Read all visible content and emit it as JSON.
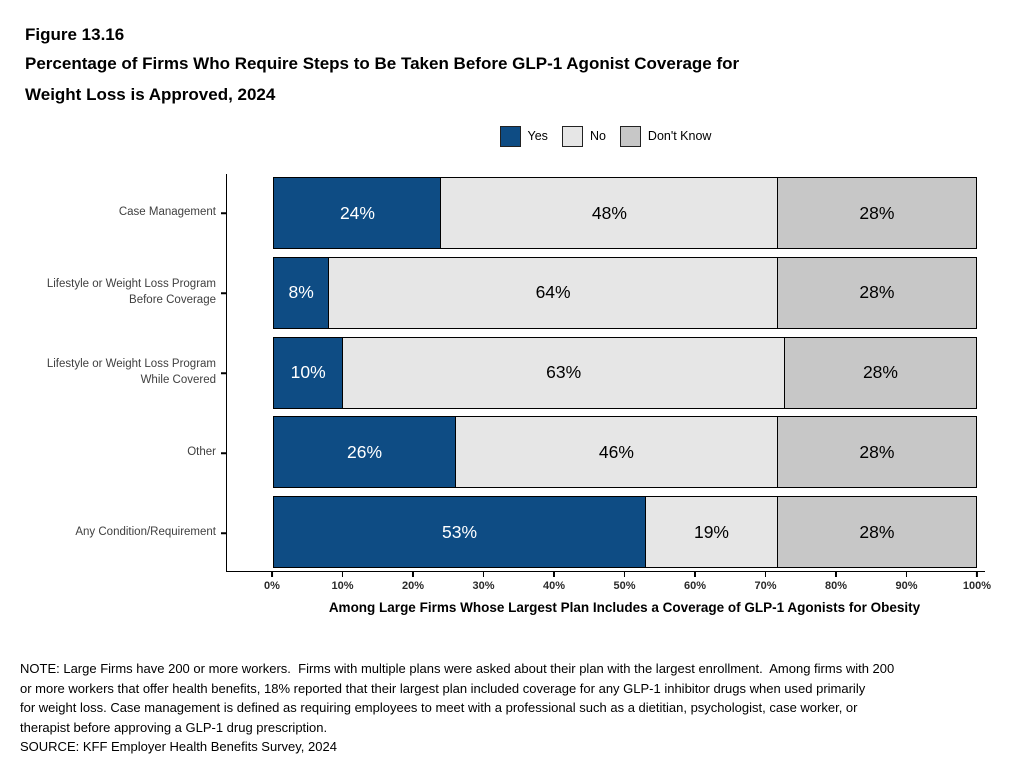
{
  "figure": {
    "number": "Figure 13.16",
    "title_lines": [
      "Percentage of Firms Who Require Steps to Be Taken Before GLP-1 Agonist Coverage for",
      "Weight Loss is Approved, 2024"
    ]
  },
  "legend": [
    {
      "label": "Yes",
      "color": "#0E4C84"
    },
    {
      "label": "No",
      "color": "#E6E6E6"
    },
    {
      "label": "Don't Know",
      "color": "#C7C7C7"
    }
  ],
  "chart_data": {
    "type": "bar",
    "orientation": "horizontal",
    "stacked": true,
    "title": "Percentage of Firms Who Require Steps to Be Taken Before GLP-1 Agonist Coverage for Weight Loss is Approved, 2024",
    "categories": [
      {
        "lines": [
          "Case Management"
        ]
      },
      {
        "lines": [
          "Lifestyle or Weight Loss Program",
          "Before Coverage"
        ]
      },
      {
        "lines": [
          "Lifestyle or Weight Loss Program",
          "While Covered"
        ]
      },
      {
        "lines": [
          "Other"
        ]
      },
      {
        "lines": [
          "Any Condition/Requirement"
        ]
      }
    ],
    "series": [
      {
        "name": "Yes",
        "color": "#0E4C84",
        "text_color": "#FFFFFF",
        "values": [
          24,
          8,
          10,
          26,
          53
        ]
      },
      {
        "name": "No",
        "color": "#E6E6E6",
        "text_color": "#000000",
        "values": [
          48,
          64,
          63,
          46,
          19
        ]
      },
      {
        "name": "Don't Know",
        "color": "#C7C7C7",
        "text_color": "#000000",
        "values": [
          28,
          28,
          28,
          28,
          28
        ]
      }
    ],
    "value_suffix": "%",
    "xlim": [
      0,
      100
    ],
    "x_tick_labels": [
      "0%",
      "10%",
      "20%",
      "30%",
      "40%",
      "50%",
      "60%",
      "70%",
      "80%",
      "90%",
      "100%"
    ],
    "xlabel": "Among Large Firms Whose Largest Plan Includes a Coverage of GLP-1 Agonists for Obesity",
    "legend_position": "top",
    "grid": false
  },
  "notes": {
    "lines": [
      "NOTE: Large Firms have 200 or more workers.  Firms with multiple plans were asked about their plan with the largest enrollment.  Among firms with 200",
      "or more workers that offer health benefits, 18% reported that their largest plan included coverage for any GLP-1 inhibitor drugs when used primarily",
      "for weight loss. Case management is defined as requiring employees to meet with a professional such as a dietitian, psychologist, case worker, or",
      "therapist before approving a GLP-1 drug prescription."
    ],
    "source": "SOURCE: KFF Employer Health Benefits Survey, 2024"
  }
}
